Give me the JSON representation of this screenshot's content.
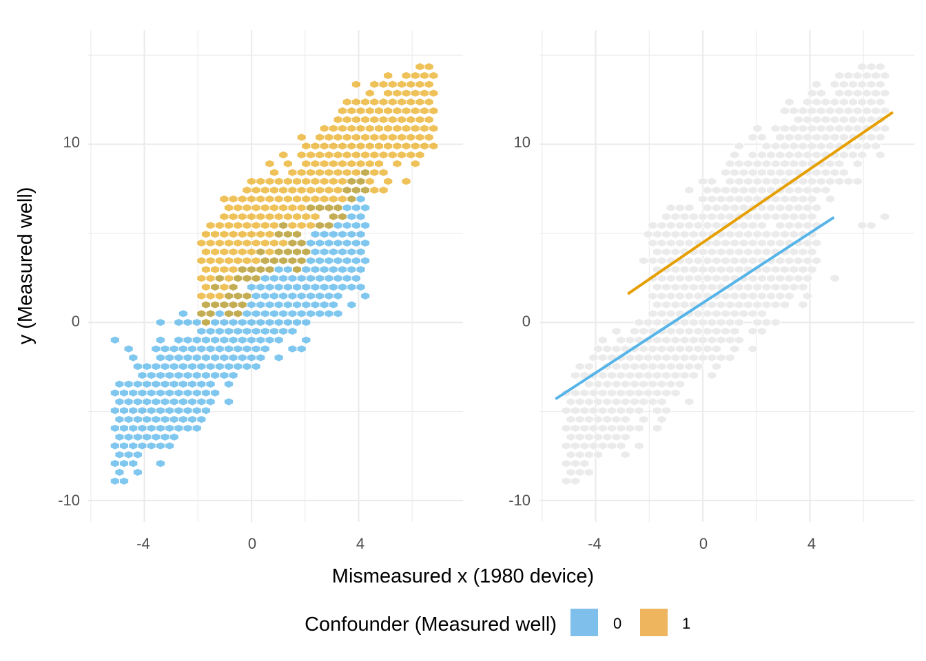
{
  "chart_data": [
    {
      "type": "hexbin",
      "panel": "left",
      "xlabel": "Mismeasured x (1980 device)",
      "ylabel": "y (Measured well)",
      "xlim": [
        -6.1,
        7.9
      ],
      "ylim": [
        -11.2,
        16.4
      ],
      "x_ticks": [
        -4,
        0,
        4
      ],
      "y_ticks": [
        -10,
        0,
        10
      ],
      "grid": true,
      "fill_by": "Confounder (Measured well)",
      "series": [
        {
          "name": "0",
          "color": "#56B4E9",
          "x_range": [
            -5.5,
            4.9
          ],
          "y_range": [
            -8.6,
            6.6
          ],
          "slope": 1.25,
          "intercept": 0.0,
          "x_center": -0.4,
          "halfwidth_y": 3.0
        },
        {
          "name": "1",
          "color": "#E69F00",
          "x_range": [
            -2.9,
            7.1
          ],
          "y_range": [
            -1.7,
            14.2
          ],
          "slope": 1.25,
          "intercept": 4.6,
          "x_center": 2.5,
          "halfwidth_y": 3.0
        }
      ]
    },
    {
      "type": "hexbin",
      "panel": "right",
      "xlabel": "Mismeasured x (1980 device)",
      "ylabel": "",
      "xlim": [
        -6.1,
        7.9
      ],
      "ylim": [
        -11.2,
        16.4
      ],
      "x_ticks": [
        -4,
        0,
        4
      ],
      "y_ticks": [
        -10,
        0,
        10
      ],
      "grid": true,
      "background_hex_color": "#EBEBEB",
      "series": [
        {
          "name": "0",
          "color": "#56B4E9",
          "line": {
            "x": [
              -5.5,
              4.9
            ],
            "y": [
              -4.3,
              5.9
            ]
          }
        },
        {
          "name": "1",
          "color": "#E69F00",
          "line": {
            "x": [
              -2.8,
              7.1
            ],
            "y": [
              1.6,
              11.8
            ]
          }
        }
      ]
    }
  ],
  "axes": {
    "x_tick_labels": [
      "-4",
      "0",
      "4"
    ],
    "y_tick_labels": [
      "10",
      "0",
      "-10"
    ],
    "xlabel": "Mismeasured x (1980 device)",
    "ylabel": "y (Measured well)"
  },
  "legend": {
    "title": "Confounder (Measured well)",
    "position": "bottom",
    "items": [
      {
        "label": "0",
        "color": "#56B4E9"
      },
      {
        "label": "1",
        "color": "#E69F00"
      }
    ]
  }
}
